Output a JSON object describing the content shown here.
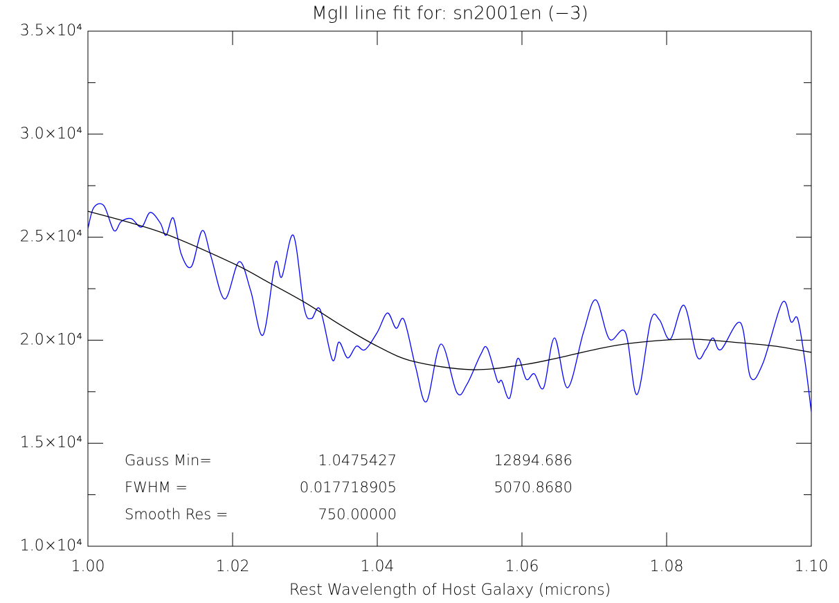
{
  "chart_data": {
    "type": "line",
    "title": "MgII line fit for: sn2001en (−3)",
    "x_label": "Rest Wavelength of Host Galaxy (microns)",
    "xlim": [
      1.0,
      1.1
    ],
    "xticks": [
      {
        "value": 1.0,
        "label": "1.00"
      },
      1.02,
      1.04,
      1.06,
      1.08,
      {
        "value": 1.1,
        "label": "1.10"
      }
    ],
    "ylim": [
      10000,
      35000
    ],
    "yticks": [
      {
        "value": 10000,
        "label": "1.0×10⁴"
      },
      {
        "value": 15000,
        "label": "1.5×10⁴"
      },
      {
        "value": 20000,
        "label": "2.0×10⁴"
      },
      {
        "value": 25000,
        "label": "2.5×10⁴"
      },
      {
        "value": 30000,
        "label": "3.0×10⁴"
      },
      {
        "value": 35000,
        "label": "3.5×10⁴"
      }
    ],
    "yminorticks": [
      12500,
      17500,
      22500,
      27500,
      32500
    ],
    "series": [
      {
        "color": "#0000ff",
        "x": [
          1.0,
          1.0008,
          1.0022,
          1.0036,
          1.0046,
          1.006,
          1.0074,
          1.0086,
          1.01,
          1.0108,
          1.0118,
          1.0129,
          1.0143,
          1.0158,
          1.017,
          1.0189,
          1.0209,
          1.0225,
          1.0242,
          1.0259,
          1.0268,
          1.0284,
          1.0299,
          1.0309,
          1.0321,
          1.0338,
          1.0347,
          1.0359,
          1.0371,
          1.0383,
          1.04,
          1.0414,
          1.0426,
          1.0437,
          1.0453,
          1.0468,
          1.0488,
          1.051,
          1.0524,
          1.0543,
          1.0552,
          1.0566,
          1.0572,
          1.0583,
          1.0594,
          1.0606,
          1.0617,
          1.063,
          1.0645,
          1.0663,
          1.0685,
          1.0702,
          1.0721,
          1.0743,
          1.0759,
          1.0778,
          1.079,
          1.0805,
          1.0824,
          1.0842,
          1.0854,
          1.0864,
          1.0875,
          1.0902,
          1.0916,
          1.0933,
          1.096,
          1.0972,
          1.0981,
          1.0991,
          1.1
        ],
        "values": [
          25422,
          26430,
          26530,
          25320,
          25760,
          25900,
          25490,
          26200,
          25690,
          25090,
          25930,
          24180,
          23570,
          25320,
          24080,
          22000,
          23810,
          22400,
          20250,
          23740,
          23070,
          25090,
          21560,
          21050,
          21490,
          19040,
          19910,
          19140,
          19710,
          19540,
          20380,
          21320,
          20580,
          20990,
          18700,
          17020,
          19810,
          17460,
          17860,
          19310,
          19610,
          18030,
          18030,
          17190,
          19110,
          18100,
          18370,
          17690,
          20110,
          17690,
          20380,
          21960,
          20050,
          20380,
          17360,
          20950,
          20990,
          20050,
          21690,
          19210,
          19540,
          20110,
          19540,
          20850,
          18200,
          18870,
          21830,
          20890,
          21050,
          19040,
          16520
        ]
      },
      {
        "color": "#000000",
        "x": [
          1.0,
          1.01,
          1.02,
          1.025,
          1.03,
          1.035,
          1.04,
          1.045,
          1.053,
          1.06,
          1.065,
          1.07,
          1.075,
          1.083,
          1.09,
          1.095,
          1.1
        ],
        "values": [
          26260,
          25250,
          23740,
          22800,
          21830,
          20720,
          19710,
          18970,
          18570,
          18800,
          19140,
          19540,
          19850,
          20050,
          19880,
          19710,
          19410
        ]
      }
    ],
    "annotations": [
      [
        "Gauss Min=",
        "1.0475427",
        "12894.686"
      ],
      [
        "FWHM =",
        "0.017718905",
        "5070.8680"
      ],
      [
        "Smooth Res =",
        "750.00000"
      ]
    ]
  }
}
